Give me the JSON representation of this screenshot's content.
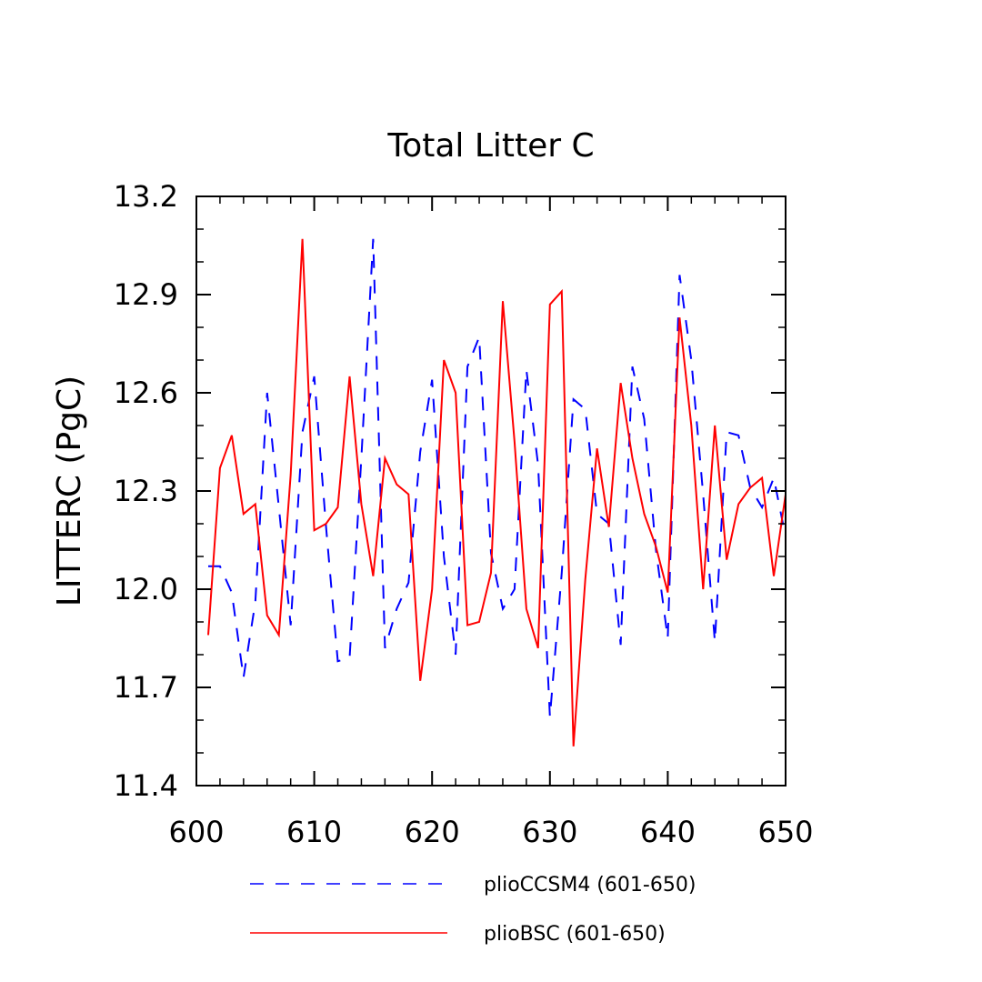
{
  "chart_data": {
    "type": "line",
    "title": "Total Litter C",
    "xlabel": "",
    "ylabel": "LITTERC  (PgC)",
    "xlim": [
      600,
      650
    ],
    "ylim": [
      11.4,
      13.2
    ],
    "x_ticks": [
      600,
      610,
      620,
      630,
      640,
      650
    ],
    "y_ticks": [
      11.4,
      11.7,
      12.0,
      12.3,
      12.6,
      12.9,
      13.2
    ],
    "x_tick_labels": [
      "600",
      "610",
      "620",
      "630",
      "640",
      "650"
    ],
    "y_tick_labels": [
      "11.4",
      "11.7",
      "12.0",
      "12.3",
      "12.6",
      "12.9",
      "13.2"
    ],
    "grid": false,
    "legend_position": "bottom",
    "x": [
      601,
      602,
      603,
      604,
      605,
      606,
      607,
      608,
      609,
      610,
      611,
      612,
      613,
      614,
      615,
      616,
      617,
      618,
      619,
      620,
      621,
      622,
      623,
      624,
      625,
      626,
      627,
      628,
      629,
      630,
      631,
      632,
      633,
      634,
      635,
      636,
      637,
      638,
      639,
      640,
      641,
      642,
      643,
      644,
      645,
      646,
      647,
      648,
      649,
      650
    ],
    "series": [
      {
        "name": "plioCCSM4 (601-650)",
        "color": "#0000ff",
        "dash": "dashed",
        "values": [
          12.07,
          12.07,
          11.99,
          11.73,
          11.96,
          12.6,
          12.25,
          11.89,
          12.48,
          12.65,
          12.19,
          11.78,
          11.79,
          12.4,
          13.07,
          11.82,
          11.94,
          12.02,
          12.42,
          12.64,
          12.1,
          11.8,
          12.68,
          12.77,
          12.11,
          11.94,
          12.0,
          12.67,
          12.38,
          11.61,
          12.05,
          12.58,
          12.55,
          12.23,
          12.2,
          11.83,
          12.68,
          12.52,
          12.12,
          11.85,
          12.96,
          12.7,
          12.29,
          11.84,
          12.48,
          12.47,
          12.31,
          12.25,
          12.34,
          12.16
        ]
      },
      {
        "name": "plioBSC (601-650)",
        "color": "#ff0000",
        "dash": "solid",
        "values": [
          11.86,
          12.37,
          12.47,
          12.23,
          12.26,
          11.92,
          11.86,
          12.35,
          13.07,
          12.18,
          12.2,
          12.25,
          12.65,
          12.26,
          12.04,
          12.4,
          12.32,
          12.29,
          11.72,
          12.0,
          12.7,
          12.6,
          11.89,
          11.9,
          12.05,
          12.88,
          12.45,
          11.94,
          11.82,
          12.87,
          12.91,
          11.52,
          12.03,
          12.43,
          12.19,
          12.63,
          12.4,
          12.23,
          12.13,
          11.99,
          12.83,
          12.5,
          12.0,
          12.5,
          12.09,
          12.26,
          12.31,
          12.34,
          12.04,
          12.29
        ]
      }
    ]
  }
}
